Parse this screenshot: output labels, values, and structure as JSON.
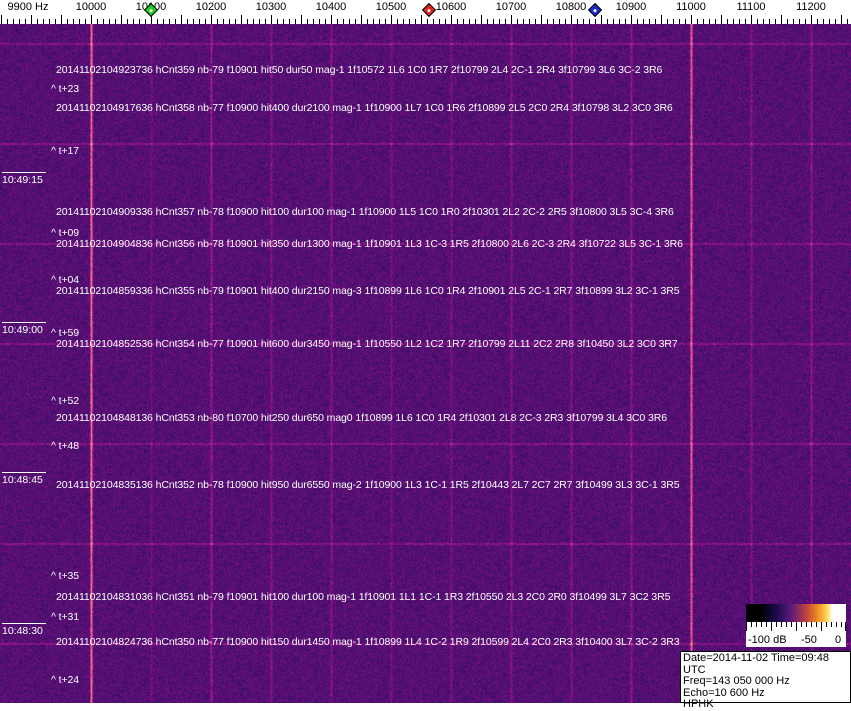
{
  "frequency_axis": {
    "labels": [
      "9900 Hz",
      "10000",
      "10100",
      "10200",
      "10300",
      "10400",
      "10500",
      "10600",
      "10700",
      "10800",
      "10900",
      "11000",
      "11100",
      "11200"
    ],
    "label_freqs": [
      9900,
      10000,
      10100,
      10200,
      10300,
      10400,
      10500,
      10600,
      10700,
      10800,
      10900,
      11000,
      11100,
      11200
    ],
    "markers": [
      {
        "name": "green-marker",
        "freq": 10100,
        "color": "#22cc22"
      },
      {
        "name": "red-marker",
        "freq": 10563,
        "color": "#dd2222"
      },
      {
        "name": "blue-marker",
        "freq": 10840,
        "color": "#1a2acc"
      }
    ]
  },
  "time_labels": [
    "10:49:15",
    "10:49:00",
    "10:48:45",
    "10:48:30"
  ],
  "detections": [
    "20141102104923736 hCnt359 nb-79 f10901 hit50 dur50 mag-1 1f10572 1L6 1C0 1R7 2f10799 2L4 2C-1 2R4 3f10799 3L6 3C-2 3R6",
    "20141102104917636 hCnt358 nb-77 f10900 hit400 dur2100 mag-1 1f10900 1L7 1C0 1R6 2f10899 2L5 2C0 2R4 3f10798 3L2 3C0 3R6",
    "20141102104909336 hCnt357 nb-78 f10900 hit100 dur100 mag-1 1f10900 1L5 1C0 1R0 2f10301 2L2 2C-2 2R5 3f10800 3L5 3C-4 3R6",
    "20141102104904836 hCnt356 nb-78 f10901 hit350 dur1300 mag-1 1f10901 1L3 1C-3 1R5 2f10800 2L6 2C-3 2R4 3f10722 3L5 3C-1 3R6",
    "20141102104859336 hCnt355 nb-79 f10901 hit400 dur2150 mag-3 1f10899 1L6 1C0 1R4 2f10901 2L5 2C-1 2R7 3f10899 3L2 3C-1 3R5",
    "20141102104852536 hCnt354 nb-77 f10901 hit600 dur3450 mag-1 1f10550 1L2 1C2 1R7 2f10799 2L11 2C2 2R8 3f10450 3L2 3C0 3R7",
    "20141102104848136 hCnt353 nb-80 f10700 hit250 dur650 mag0 1f10899 1L6 1C0 1R4 2f10301 2L8 2C-3 2R3 3f10799 3L4 3C0 3R6",
    "20141102104835136 hCnt352 nb-78 f10900 hit950 dur6550 mag-2 1f10900 1L3 1C-1 1R5 2f10443 2L7 2C7 2R7 3f10499 3L3 3C-1 3R5",
    "20141102104831036 hCnt351 nb-79 f10901 hit100 dur100 mag-1 1f10901 1L1 1C-1 1R3 2f10550 2L3 2C0 2R0 3f10499 3L7 3C2 3R5",
    "20141102104824736 hCnt350 nb-77 f10900 hit150 dur1450 mag-1 1f10899 1L4 1C-2 1R9 2f10599 2L4 2C0 2R3 3f10400 3L7 3C-2 3R3"
  ],
  "intervals": [
    "^ t+23",
    "^ t+17",
    "^ t+09",
    "^ t+04",
    "^ t+59",
    "^ t+52",
    "^ t+48",
    "^ t+35",
    "^ t+31",
    "^ t+24"
  ],
  "colorbar": {
    "labels": [
      "-100 dB",
      "-50",
      "0"
    ]
  },
  "info": {
    "line1": "Date=2014-11-02 Time=09:48 UTC",
    "line2": "Freq=143 050 000 Hz",
    "line3": "Echo=10 600 Hz",
    "line4": "HPHK"
  }
}
